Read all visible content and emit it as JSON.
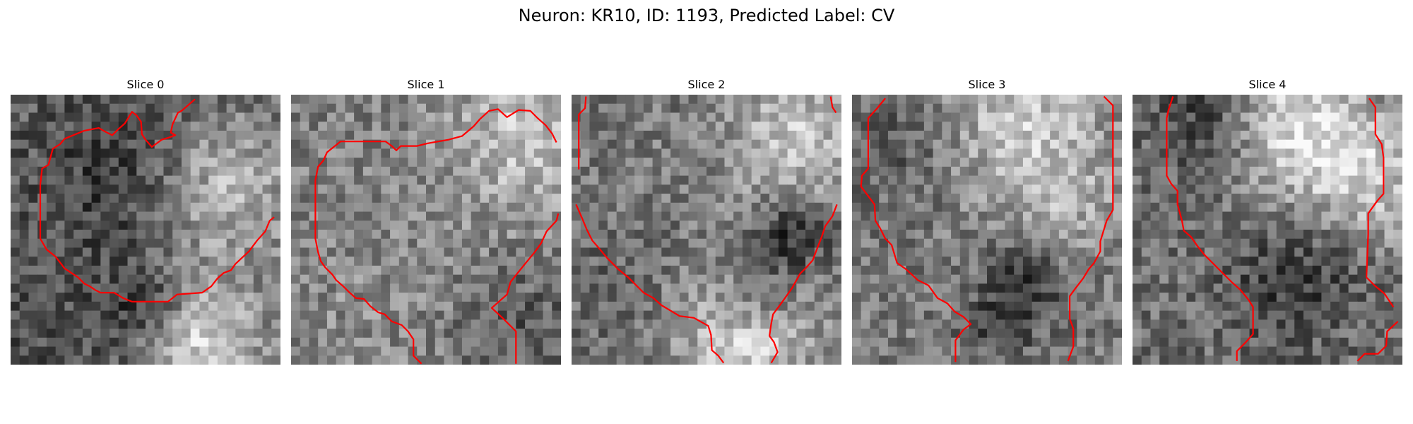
{
  "figure": {
    "title": "Neuron: KR10, ID: 1193, Predicted Label: CV",
    "contour_color": "#ff0000",
    "colormap": "grayscale"
  },
  "panels": [
    {
      "title": "Slice 0",
      "seed": 11
    },
    {
      "title": "Slice 1",
      "seed": 23
    },
    {
      "title": "Slice 2",
      "seed": 37
    },
    {
      "title": "Slice 3",
      "seed": 51
    },
    {
      "title": "Slice 4",
      "seed": 67
    }
  ]
}
